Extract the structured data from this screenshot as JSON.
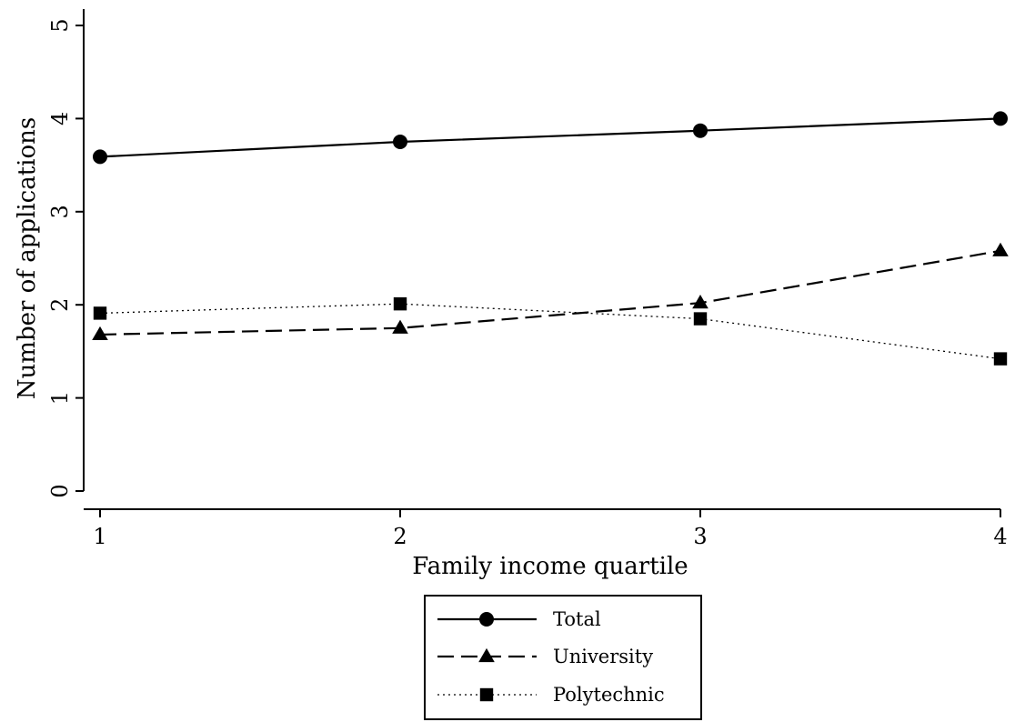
{
  "chart_data": {
    "type": "line",
    "title": "",
    "xlabel": "Family income quartile",
    "ylabel": "Number of applications",
    "x": [
      1,
      2,
      3,
      4
    ],
    "xlim": [
      1,
      4
    ],
    "ylim": [
      0,
      5
    ],
    "xticks": [
      "1",
      "2",
      "3",
      "4"
    ],
    "yticks": [
      "0",
      "1",
      "2",
      "3",
      "4",
      "5"
    ],
    "grid": false,
    "legend_position": "bottom",
    "series": [
      {
        "name": "Total",
        "values": [
          3.59,
          3.75,
          3.87,
          4.0
        ],
        "line_style": "solid",
        "marker": "circle",
        "color": "#000000"
      },
      {
        "name": "University",
        "values": [
          1.68,
          1.75,
          2.02,
          2.58
        ],
        "line_style": "dashed",
        "marker": "triangle",
        "color": "#000000"
      },
      {
        "name": "Polytechnic",
        "values": [
          1.91,
          2.01,
          1.85,
          1.42
        ],
        "line_style": "dotted",
        "marker": "square",
        "color": "#000000"
      }
    ]
  }
}
